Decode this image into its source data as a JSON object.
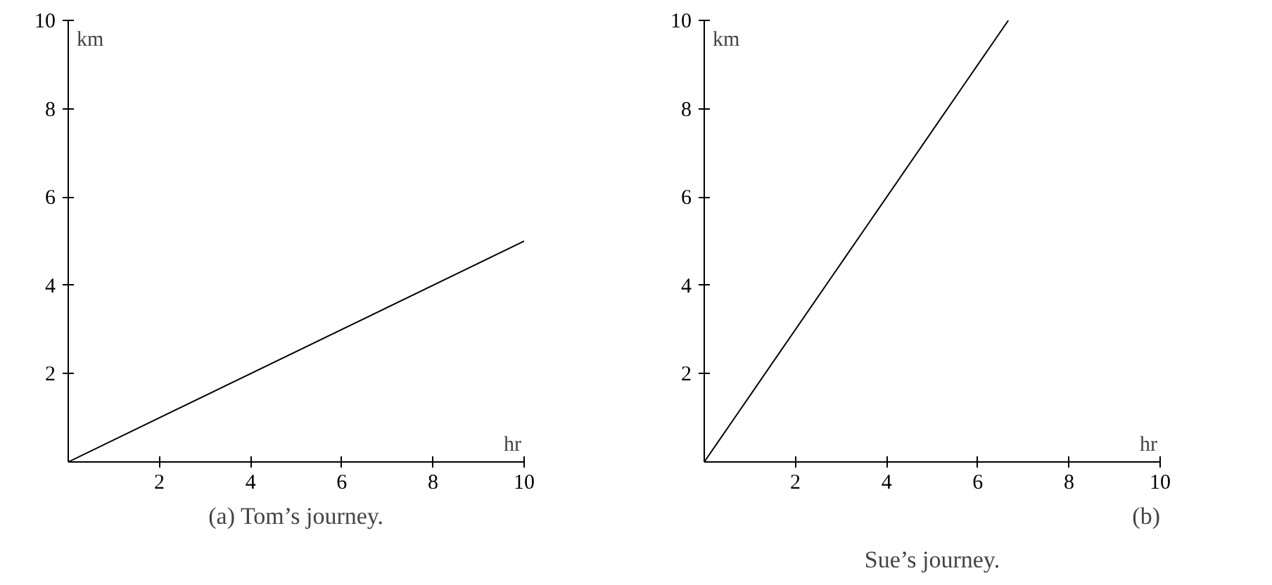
{
  "chart_data": [
    {
      "type": "line",
      "xlabel": "hr",
      "ylabel": "km",
      "x": [
        0,
        10
      ],
      "values": [
        0,
        5
      ],
      "color": "#000000",
      "xlim": [
        0,
        10
      ],
      "ylim": [
        0,
        10
      ],
      "xticks": [
        2,
        4,
        6,
        8,
        10
      ],
      "yticks": [
        2,
        4,
        6,
        8,
        10
      ],
      "grid": false,
      "annotations": [
        "(a) Tom’s journey."
      ]
    },
    {
      "type": "line",
      "xlabel": "hr",
      "ylabel": "km",
      "x": [
        0,
        6.67
      ],
      "values": [
        0,
        10
      ],
      "color": "#000000",
      "xlim": [
        0,
        10
      ],
      "ylim": [
        0,
        10
      ],
      "xticks": [
        2,
        4,
        6,
        8,
        10
      ],
      "yticks": [
        2,
        4,
        6,
        8,
        10
      ],
      "grid": false,
      "annotations": [
        "Sue’s journey.",
        "(b)"
      ]
    }
  ]
}
